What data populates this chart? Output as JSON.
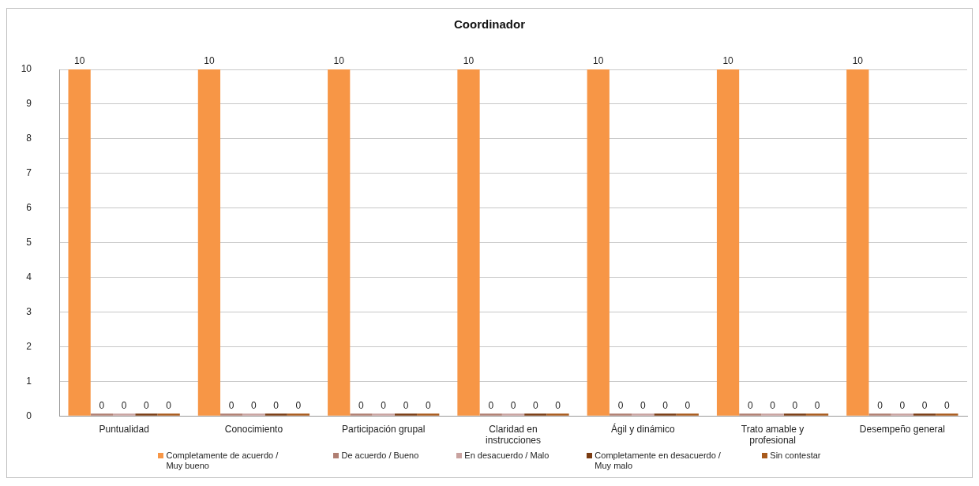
{
  "chart_data": {
    "type": "bar",
    "title": "Coordinador",
    "categories": [
      "Puntualidad",
      "Conocimiento",
      "Participación grupal",
      "Claridad en instrucciones",
      "Ágil y dinámico",
      "Trato amable y profesional",
      "Desempeño general"
    ],
    "series": [
      {
        "name": "Completamente de acuerdo / Muy bueno",
        "color": "#f79646",
        "values": [
          10,
          10,
          10,
          10,
          10,
          10,
          10
        ]
      },
      {
        "name": "De acuerdo / Bueno",
        "color": "#b07f72",
        "values": [
          0,
          0,
          0,
          0,
          0,
          0,
          0
        ]
      },
      {
        "name": "En desacuerdo / Malo",
        "color": "#c9a3a0",
        "values": [
          0,
          0,
          0,
          0,
          0,
          0,
          0
        ]
      },
      {
        "name": "Completamente en desacuerdo / Muy malo",
        "color": "#7a3b12",
        "values": [
          0,
          0,
          0,
          0,
          0,
          0,
          0
        ]
      },
      {
        "name": "Sin contestar",
        "color": "#a85a1c",
        "values": [
          0,
          0,
          0,
          0,
          0,
          0,
          0
        ]
      }
    ],
    "ylim": [
      0,
      10
    ],
    "yticks": [
      0,
      1,
      2,
      3,
      4,
      5,
      6,
      7,
      8,
      9,
      10
    ],
    "grid": "y",
    "legend": "bottom",
    "data_labels": true
  }
}
